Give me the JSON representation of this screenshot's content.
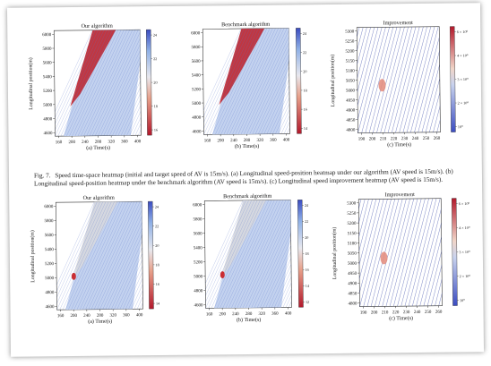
{
  "figure": {
    "caption_label": "Fig. 7.",
    "caption_text": "Speed time-space heatmap (initial and target speed of AV is 15m/s). (a) Longitudinal speed-position heatmap under our algorithm (AV speed is 15m/s). (b) Longitudinal speed-position heatmap under the benchmark algorithm (AV speed is 15m/s). (c) Longitudinal speed improvement heatmap (AV speed is 15m/s)."
  },
  "rows": [
    {
      "panels": [
        {
          "title": "Our algorithm",
          "xlabel": "(a) Time(s)",
          "ylabel": "Longitudinal position(m)",
          "xticks": [
            "160",
            "200",
            "240",
            "280",
            "320",
            "360",
            "400"
          ],
          "yticks": [
            "6000",
            "5800",
            "5600",
            "5400",
            "5200",
            "5000",
            "4800",
            "4600"
          ],
          "cbar_ticks": [
            "24",
            "22",
            "20",
            "18",
            "16"
          ]
        },
        {
          "title": "Benchmark algorithm",
          "xlabel": "(b) Time(s)",
          "ylabel": "",
          "xticks": [
            "160",
            "200",
            "240",
            "280",
            "320",
            "360",
            "400"
          ],
          "yticks": [
            "6000",
            "5800",
            "5600",
            "5400",
            "5200",
            "5000",
            "4800",
            "4600"
          ],
          "cbar_ticks": [
            "24",
            "22",
            "20",
            "18",
            "16",
            "14"
          ]
        },
        {
          "title": "Improvement",
          "xlabel": "(c) Time(s)",
          "ylabel": "Longitudinal position(m)",
          "xticks": [
            "190",
            "200",
            "210",
            "220",
            "230",
            "240",
            "250",
            "260"
          ],
          "yticks": [
            "5300",
            "5250",
            "5200",
            "5150",
            "5100",
            "5050",
            "5000",
            "4950",
            "4900",
            "4850",
            "4800"
          ],
          "cbar_ticks": [
            "6 × 10⁰",
            "4 × 10⁰",
            "3 × 10⁰",
            "2 × 10⁰",
            "10⁰"
          ]
        }
      ]
    },
    {
      "panels": [
        {
          "title": "Our algorithm",
          "xlabel": "(a) Time(s)",
          "ylabel": "Longitudinal position(m)",
          "xticks": [
            "160",
            "200",
            "240",
            "280",
            "320",
            "360",
            "400"
          ],
          "yticks": [
            "6000",
            "5800",
            "5600",
            "5400",
            "5200",
            "5000",
            "4800",
            "4600"
          ],
          "cbar_ticks": [
            "24",
            "22",
            "20",
            "18",
            "16",
            "14"
          ]
        },
        {
          "title": "Benchmark algorithm",
          "xlabel": "(b) Time(s)",
          "ylabel": "",
          "xticks": [
            "160",
            "200",
            "240",
            "280",
            "320",
            "360",
            "400"
          ],
          "yticks": [
            "6000",
            "5800",
            "5600",
            "5400",
            "5200",
            "5000",
            "4800",
            "4600"
          ],
          "cbar_ticks": [
            "24",
            "22",
            "20",
            "18",
            "16",
            "14",
            "12"
          ]
        },
        {
          "title": "Improvement",
          "xlabel": "(c) Time(s)",
          "ylabel": "Longitudinal position(m)",
          "xticks": [
            "190",
            "200",
            "210",
            "220",
            "230",
            "240",
            "250",
            "260"
          ],
          "yticks": [
            "5300",
            "5250",
            "5200",
            "5150",
            "5100",
            "5050",
            "5000",
            "4950",
            "4900",
            "4850",
            "4800"
          ],
          "cbar_ticks": [
            "6 × 10⁰",
            "4 × 10⁰",
            "3 × 10⁰",
            "2 × 10⁰",
            "10⁰"
          ]
        }
      ]
    }
  ]
}
